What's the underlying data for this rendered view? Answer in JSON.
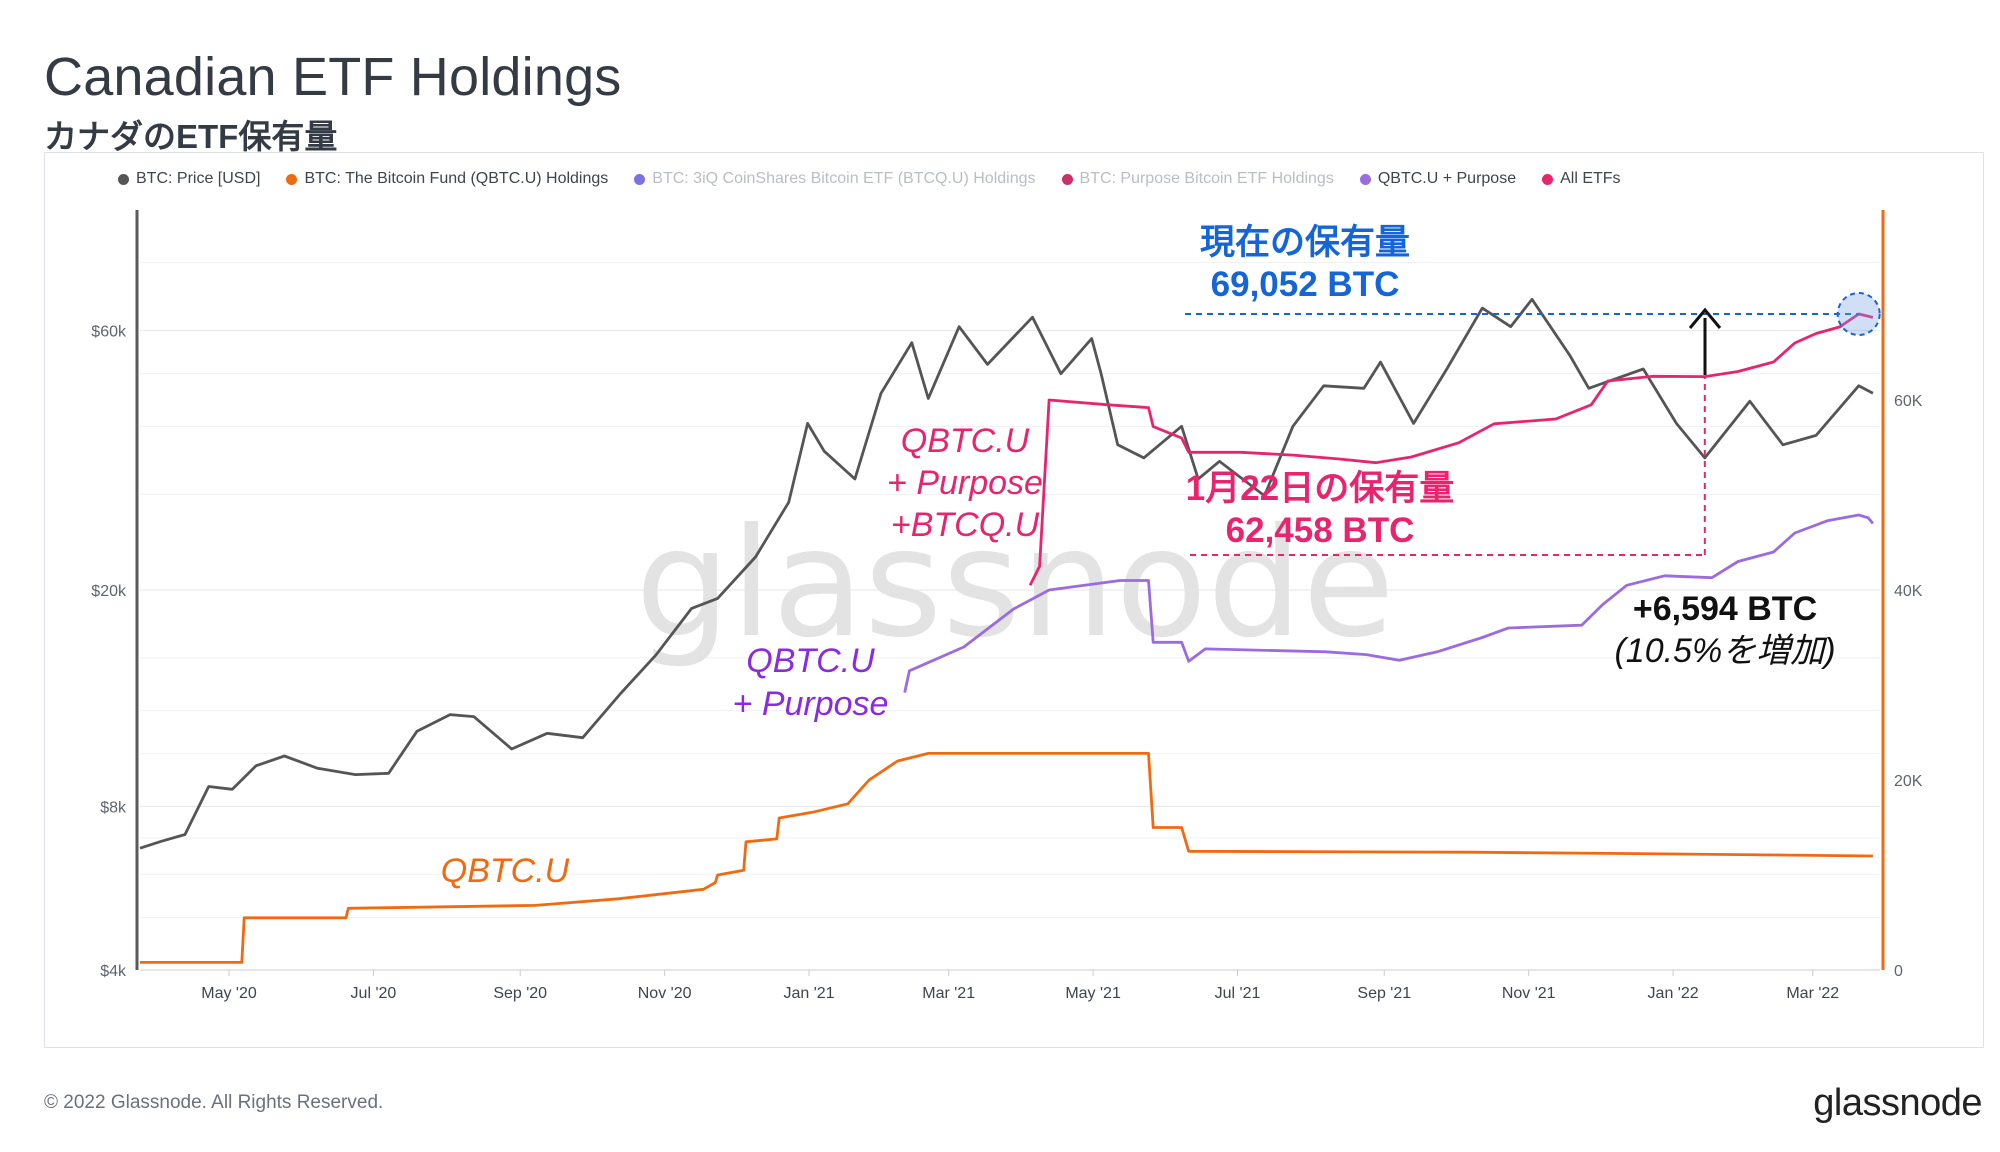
{
  "header": {
    "title": "Canadian ETF Holdings",
    "subtitle": "カナダのETF保有量"
  },
  "footer": {
    "copyright": "© 2022 Glassnode. All Rights Reserved.",
    "brand": "glassnode"
  },
  "watermark": "glassnode",
  "colors": {
    "price": "#555555",
    "qbtc": "#f26a10",
    "btcq": "#6c63e0",
    "purpose": "#c2185b",
    "qbtc_purpose": "#9b6be0",
    "all_etfs": "#e8246e",
    "annotation_blue": "#1565d8",
    "annotation_purple": "#8a2be2"
  },
  "annotations": {
    "current_label": "現在の保有量",
    "current_value": "69,052 BTC",
    "jan22_label": "1月22日の保有量",
    "jan22_value": "62,458 BTC",
    "increase_value": "+6,594 BTC",
    "increase_note": "(10.5%を増加)",
    "all_line1": "QBTC.U",
    "all_line2": "+ Purpose",
    "all_line3": "+BTCQ.U",
    "qp_line1": "QBTC.U",
    "qp_line2": "+ Purpose",
    "qbtc_label": "QBTC.U"
  },
  "chart_data": {
    "type": "line",
    "x_ticks": [
      "May '20",
      "Jul '20",
      "Sep '20",
      "Nov '20",
      "Jan '21",
      "Mar '21",
      "May '21",
      "Jul '21",
      "Sep '21",
      "Nov '21",
      "Jan '22",
      "Mar '22"
    ],
    "y_left": {
      "scale": "log",
      "ticks": [
        "$4k",
        "$8k",
        "$20k",
        "$60k"
      ],
      "tick_values": [
        4000,
        8000,
        20000,
        60000
      ],
      "range": [
        4000,
        100000
      ]
    },
    "y_right": {
      "scale": "linear",
      "ticks": [
        "0",
        "20K",
        "40K",
        "60K"
      ],
      "tick_values": [
        0,
        20000,
        40000,
        60000
      ],
      "range": [
        0,
        80000
      ]
    },
    "legend": [
      {
        "name": "BTC: Price [USD]",
        "color": "#555555",
        "muted": false
      },
      {
        "name": "BTC: The Bitcoin Fund (QBTC.U) Holdings",
        "color": "#f26a10",
        "muted": false
      },
      {
        "name": "BTC: 3iQ CoinShares Bitcoin ETF (BTCQ.U) Holdings",
        "color": "#6c63e0",
        "muted": true
      },
      {
        "name": "BTC: Purpose Bitcoin ETF Holdings",
        "color": "#c2185b",
        "muted": true
      },
      {
        "name": "QBTC.U + Purpose",
        "color": "#9b6be0",
        "muted": false
      },
      {
        "name": "All ETFs",
        "color": "#e8246e",
        "muted": false
      }
    ],
    "series": [
      {
        "name": "BTC: Price [USD]",
        "axis": "left",
        "color": "#555555",
        "points": [
          [
            "2020-04-01",
            6700
          ],
          [
            "2020-04-10",
            6900
          ],
          [
            "2020-04-20",
            7100
          ],
          [
            "2020-04-30",
            8700
          ],
          [
            "2020-05-10",
            8600
          ],
          [
            "2020-05-20",
            9500
          ],
          [
            "2020-06-01",
            9900
          ],
          [
            "2020-06-15",
            9400
          ],
          [
            "2020-07-01",
            9150
          ],
          [
            "2020-07-15",
            9200
          ],
          [
            "2020-07-27",
            11000
          ],
          [
            "2020-08-10",
            11800
          ],
          [
            "2020-08-20",
            11700
          ],
          [
            "2020-09-05",
            10200
          ],
          [
            "2020-09-20",
            10900
          ],
          [
            "2020-10-05",
            10700
          ],
          [
            "2020-10-21",
            12900
          ],
          [
            "2020-11-05",
            15200
          ],
          [
            "2020-11-20",
            18500
          ],
          [
            "2020-12-01",
            19300
          ],
          [
            "2020-12-17",
            23000
          ],
          [
            "2020-12-31",
            29000
          ],
          [
            "2021-01-08",
            40500
          ],
          [
            "2021-01-15",
            36000
          ],
          [
            "2021-01-28",
            32000
          ],
          [
            "2021-02-08",
            46000
          ],
          [
            "2021-02-21",
            57000
          ],
          [
            "2021-02-28",
            45000
          ],
          [
            "2021-03-13",
            61000
          ],
          [
            "2021-03-25",
            52000
          ],
          [
            "2021-04-13",
            63500
          ],
          [
            "2021-04-25",
            50000
          ],
          [
            "2021-05-08",
            58000
          ],
          [
            "2021-05-12",
            50000
          ],
          [
            "2021-05-19",
            37000
          ],
          [
            "2021-05-30",
            35000
          ],
          [
            "2021-06-15",
            40000
          ],
          [
            "2021-06-22",
            32000
          ],
          [
            "2021-07-01",
            34500
          ],
          [
            "2021-07-20",
            29800
          ],
          [
            "2021-08-01",
            40000
          ],
          [
            "2021-08-14",
            47500
          ],
          [
            "2021-08-31",
            47000
          ],
          [
            "2021-09-07",
            52500
          ],
          [
            "2021-09-21",
            40500
          ],
          [
            "2021-10-05",
            51000
          ],
          [
            "2021-10-20",
            66000
          ],
          [
            "2021-11-01",
            61000
          ],
          [
            "2021-11-10",
            68500
          ],
          [
            "2021-11-26",
            54000
          ],
          [
            "2021-12-04",
            47000
          ],
          [
            "2021-12-27",
            51000
          ],
          [
            "2022-01-10",
            40500
          ],
          [
            "2022-01-22",
            35000
          ],
          [
            "2022-02-10",
            44500
          ],
          [
            "2022-02-24",
            37000
          ],
          [
            "2022-03-10",
            38500
          ],
          [
            "2022-03-28",
            47500
          ],
          [
            "2022-04-03",
            46000
          ]
        ]
      },
      {
        "name": "QBTC.U Holdings",
        "axis": "right",
        "color": "#f26a10",
        "points": [
          [
            "2020-04-01",
            800
          ],
          [
            "2020-05-14",
            800
          ],
          [
            "2020-05-15",
            5500
          ],
          [
            "2020-06-27",
            5500
          ],
          [
            "2020-06-28",
            6500
          ],
          [
            "2020-09-15",
            6800
          ],
          [
            "2020-10-20",
            7500
          ],
          [
            "2020-11-25",
            8500
          ],
          [
            "2020-11-30",
            9200
          ],
          [
            "2020-12-01",
            10000
          ],
          [
            "2020-12-12",
            10500
          ],
          [
            "2020-12-13",
            13500
          ],
          [
            "2020-12-26",
            13800
          ],
          [
            "2020-12-27",
            16000
          ],
          [
            "2021-01-10",
            16600
          ],
          [
            "2021-01-25",
            17500
          ],
          [
            "2021-02-03",
            20000
          ],
          [
            "2021-02-15",
            22000
          ],
          [
            "2021-02-28",
            22800
          ],
          [
            "2021-06-01",
            22800
          ],
          [
            "2021-06-03",
            15000
          ],
          [
            "2021-06-15",
            15000
          ],
          [
            "2021-06-18",
            12500
          ],
          [
            "2021-10-15",
            12400
          ],
          [
            "2022-01-15",
            12200
          ],
          [
            "2022-04-03",
            12000
          ]
        ]
      },
      {
        "name": "QBTC.U + Purpose",
        "axis": "right",
        "color": "#9b6be0",
        "points": [
          [
            "2021-02-18",
            29200
          ],
          [
            "2021-02-20",
            31500
          ],
          [
            "2021-03-15",
            34000
          ],
          [
            "2021-04-05",
            38000
          ],
          [
            "2021-04-20",
            40000
          ],
          [
            "2021-05-20",
            41000
          ],
          [
            "2021-06-01",
            41000
          ],
          [
            "2021-06-03",
            34500
          ],
          [
            "2021-06-15",
            34500
          ],
          [
            "2021-06-18",
            32500
          ],
          [
            "2021-06-25",
            33800
          ],
          [
            "2021-08-15",
            33500
          ],
          [
            "2021-09-01",
            33200
          ],
          [
            "2021-09-15",
            32600
          ],
          [
            "2021-10-01",
            33500
          ],
          [
            "2021-10-20",
            35000
          ],
          [
            "2021-10-31",
            36000
          ],
          [
            "2021-12-01",
            36300
          ],
          [
            "2021-12-10",
            38500
          ],
          [
            "2021-12-20",
            40500
          ],
          [
            "2022-01-05",
            41500
          ],
          [
            "2022-01-25",
            41300
          ],
          [
            "2022-02-05",
            43000
          ],
          [
            "2022-02-20",
            44000
          ],
          [
            "2022-03-01",
            46000
          ],
          [
            "2022-03-15",
            47300
          ],
          [
            "2022-03-28",
            47900
          ],
          [
            "2022-04-01",
            47600
          ],
          [
            "2022-04-03",
            47000
          ]
        ]
      },
      {
        "name": "All ETFs",
        "axis": "right",
        "color": "#e8246e",
        "points": [
          [
            "2021-04-12",
            40500
          ],
          [
            "2021-04-16",
            42500
          ],
          [
            "2021-04-20",
            60000
          ],
          [
            "2021-05-15",
            59500
          ],
          [
            "2021-06-01",
            59200
          ],
          [
            "2021-06-03",
            57200
          ],
          [
            "2021-06-15",
            56000
          ],
          [
            "2021-06-18",
            54500
          ],
          [
            "2021-07-10",
            54500
          ],
          [
            "2021-08-01",
            54200
          ],
          [
            "2021-08-20",
            53800
          ],
          [
            "2021-09-05",
            53400
          ],
          [
            "2021-09-20",
            54000
          ],
          [
            "2021-10-10",
            55500
          ],
          [
            "2021-10-25",
            57500
          ],
          [
            "2021-11-20",
            58000
          ],
          [
            "2021-12-05",
            59500
          ],
          [
            "2021-12-12",
            62000
          ],
          [
            "2021-12-31",
            62500
          ],
          [
            "2022-01-22",
            62458
          ],
          [
            "2022-02-05",
            63000
          ],
          [
            "2022-02-20",
            64000
          ],
          [
            "2022-03-01",
            66000
          ],
          [
            "2022-03-10",
            67000
          ],
          [
            "2022-03-20",
            67700
          ],
          [
            "2022-03-28",
            69052
          ],
          [
            "2022-04-03",
            68700
          ]
        ]
      }
    ],
    "markers": [
      {
        "label": "69,052 BTC",
        "date": "2022-03-28",
        "value": 69052
      },
      {
        "label": "62,458 BTC",
        "date": "2022-01-22",
        "value": 62458
      }
    ]
  }
}
